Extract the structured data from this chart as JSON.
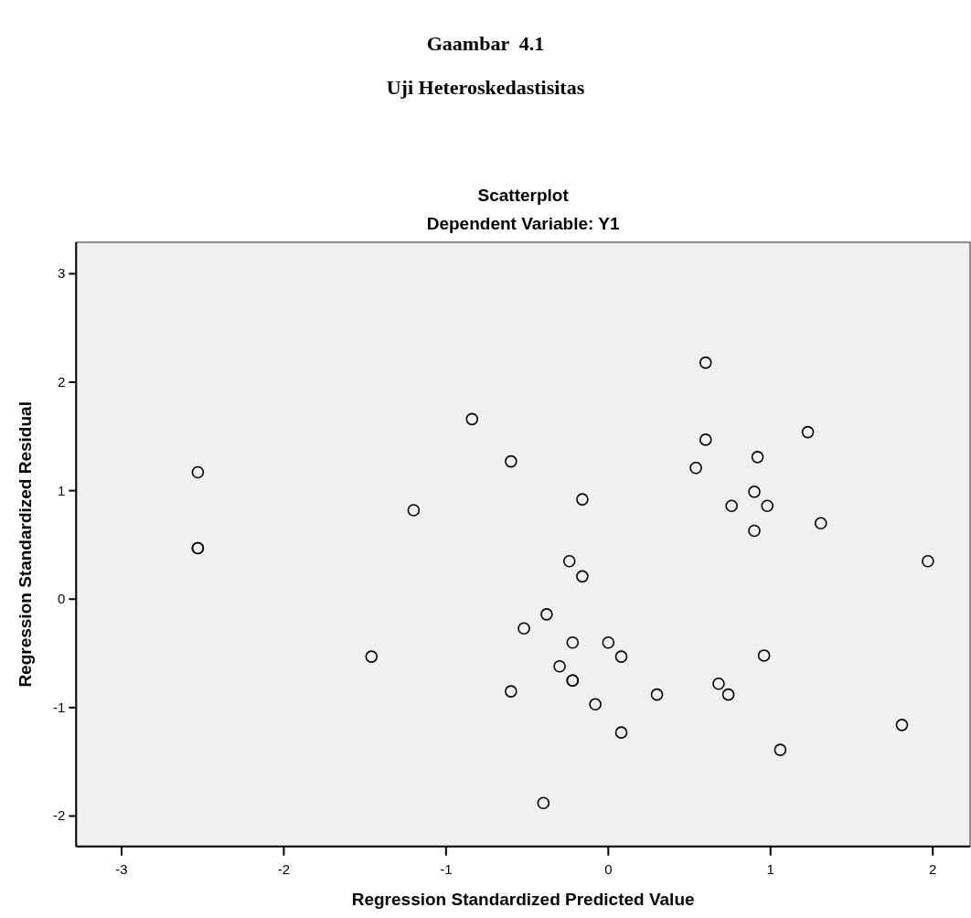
{
  "chart_data": {
    "type": "scatter",
    "title": "Scatterplot",
    "subtitle": "Dependent Variable: Y1",
    "xlabel": "Regression Standardized Predicted Value",
    "ylabel": "Regression Standardized Residual",
    "annotations": [
      "Gaambar  4.1",
      "Uji Heteroskedastisitas"
    ],
    "xlim": [
      -3.28,
      2.23
    ],
    "ylim": [
      -2.28,
      3.29
    ],
    "xticks": [
      -3,
      -2,
      -1,
      0,
      1,
      2
    ],
    "yticks": [
      -2,
      -1,
      0,
      1,
      2,
      3
    ],
    "marker": "circle",
    "series": [
      {
        "color": "#000000",
        "x": [
          -2.53,
          -2.53,
          -2.53,
          -1.2,
          -0.84,
          -0.6,
          0.6,
          1.23,
          0.6,
          0.92,
          0.54,
          -0.16,
          0.9,
          0.76,
          0.98,
          1.31,
          0.9,
          1.97,
          -0.24,
          -0.16,
          -0.38,
          -0.52,
          -0.22,
          0.0,
          0.08,
          0.96,
          -0.3,
          -0.22,
          -0.22,
          -0.6,
          0.68,
          0.74,
          0.3,
          -0.08,
          0.08,
          1.06,
          1.81,
          -0.4,
          -1.46
        ],
        "values": [
          1.17,
          0.47,
          0.47,
          0.82,
          1.66,
          1.27,
          2.18,
          1.54,
          1.47,
          1.31,
          1.21,
          0.92,
          0.99,
          0.86,
          0.86,
          0.7,
          0.63,
          0.35,
          0.35,
          0.21,
          -0.14,
          -0.27,
          -0.4,
          -0.4,
          -0.53,
          -0.52,
          -0.62,
          -0.75,
          -0.75,
          -0.85,
          -0.78,
          -0.88,
          -0.88,
          -0.97,
          -1.23,
          -1.39,
          -1.16,
          -1.88,
          -0.53
        ]
      }
    ]
  }
}
